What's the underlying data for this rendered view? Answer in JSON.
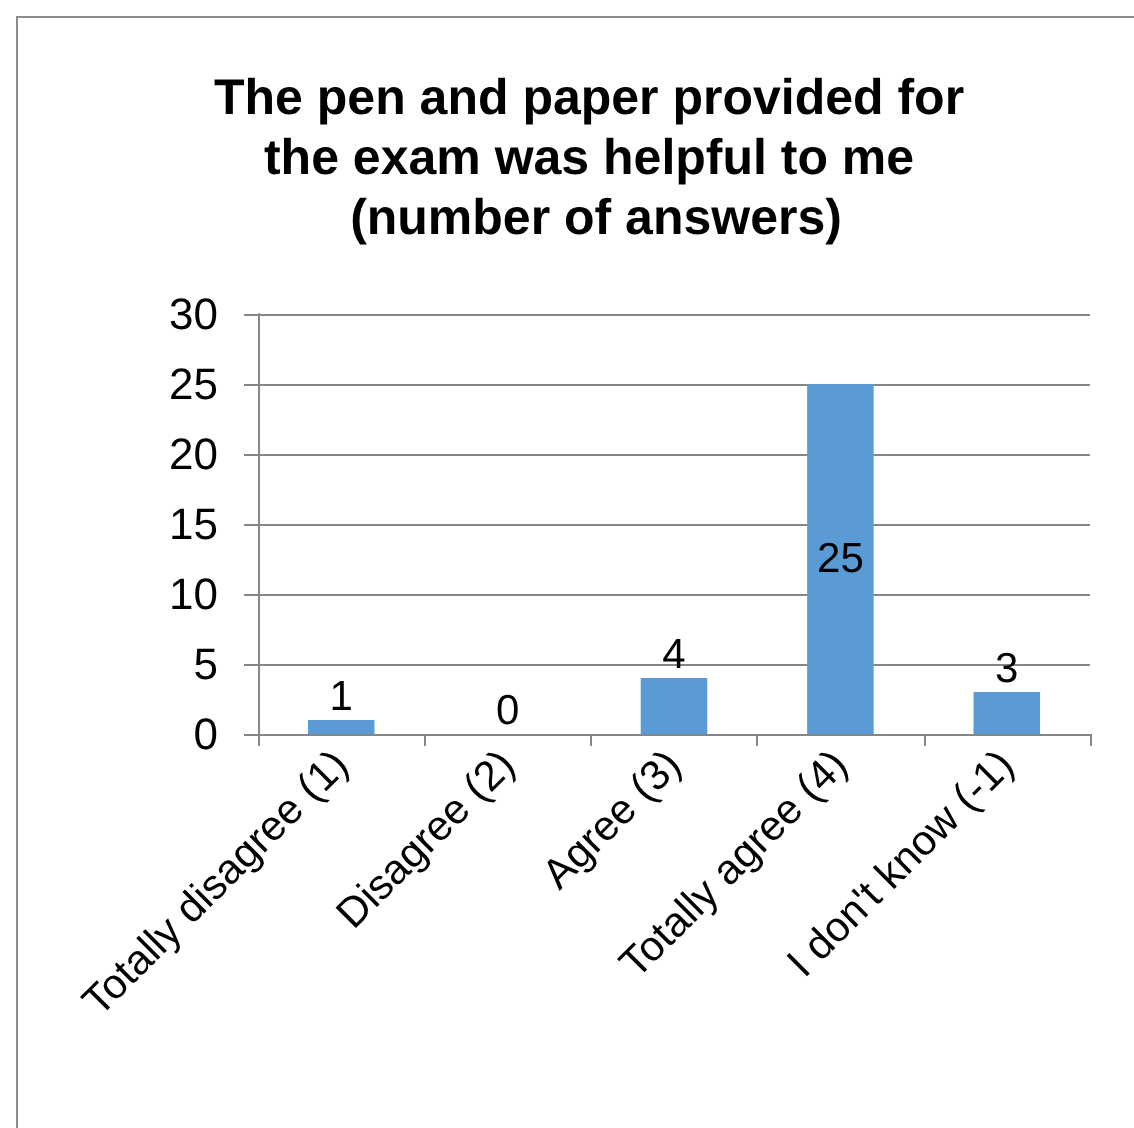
{
  "chart_data": {
    "type": "bar",
    "title": "The pen and paper provided for the exam was helpful to me (number of answers)",
    "categories": [
      "Totally disagree (1)",
      "Disagree (2)",
      "Agree (3)",
      "Totally agree (4)",
      "I don't know (-1)"
    ],
    "values": [
      1,
      0,
      4,
      25,
      3
    ],
    "color": "#5b9bd5",
    "ylim": [
      0,
      30
    ],
    "yticks": [
      0,
      5,
      10,
      15,
      20,
      25,
      30
    ],
    "grid": "y",
    "data_labels": true
  }
}
